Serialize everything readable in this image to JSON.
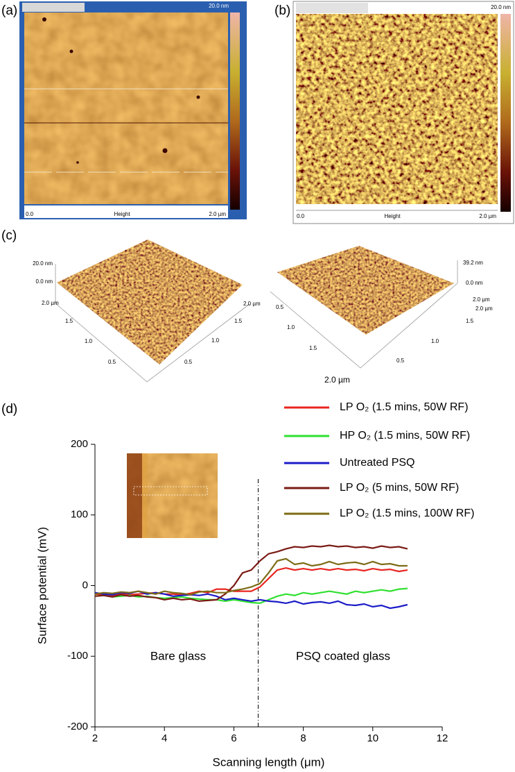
{
  "panels": {
    "a": {
      "label": "(a)",
      "scale_max": "20.0 nm",
      "x_start": "0.0",
      "axis_name": "Height",
      "x_end": "2.0 µm"
    },
    "b": {
      "label": "(b)",
      "scale_max": "20.0 nm",
      "x_start": "0.0",
      "axis_name": "Height",
      "x_end": "2.0 µm"
    },
    "c": {
      "label": "(c)",
      "left": {
        "z_top": "20.0 nm",
        "z_zero": "0.0 nm",
        "left_axis": [
          "2.0 µm",
          "1.5",
          "1.0",
          "0.5"
        ],
        "right_axis": [
          "2.0 µm",
          "1.5",
          "1.0",
          "0.5"
        ]
      },
      "right": {
        "z_top": "39.2 nm",
        "z_zero": "0.0 nm",
        "left_axis": [
          "0.5",
          "1.0",
          "1.5",
          "2.0 µm"
        ],
        "right_axis": [
          "2.0 µm",
          "2.0 µm",
          "1.5",
          "1.0",
          "0.5"
        ]
      }
    }
  },
  "chart_data": {
    "type": "line",
    "title": "(d)",
    "x_label": "Scanning length (μm)",
    "y_label": "Surface potential (mV)",
    "xlim": [
      2,
      12
    ],
    "xticks": [
      2,
      4,
      6,
      8,
      10,
      12
    ],
    "ylim": [
      -200,
      200
    ],
    "yticks": [
      -200,
      -100,
      0,
      100,
      200
    ],
    "legend": "top-right",
    "annotations": [
      "Bare glass",
      "PSQ coated glass"
    ],
    "divider_x": 6.7,
    "x": [
      2,
      2.25,
      2.5,
      2.75,
      3,
      3.25,
      3.5,
      3.75,
      4,
      4.25,
      4.5,
      4.75,
      5,
      5.25,
      5.5,
      5.75,
      6,
      6.25,
      6.5,
      6.75,
      7,
      7.25,
      7.5,
      7.75,
      8,
      8.25,
      8.5,
      8.75,
      9,
      9.25,
      9.5,
      9.75,
      10,
      10.25,
      10.5,
      10.75,
      11
    ],
    "series": [
      {
        "name": "LP O₂ (1.5 mins, 50W RF)",
        "color": "#e8241f",
        "values": [
          -12,
          -13,
          -14,
          -12,
          -13,
          -12,
          -11,
          -10,
          -12,
          -12,
          -13,
          -11,
          -8,
          -10,
          -5,
          -5,
          -8,
          -8,
          -8,
          -2,
          10,
          22,
          25,
          22,
          24,
          22,
          24,
          22,
          24,
          22,
          23,
          21,
          24,
          22,
          23,
          20,
          22
        ]
      },
      {
        "name": "HP O₂ (1.5 mins, 50W RF)",
        "color": "#2fe02f",
        "values": [
          -15,
          -14,
          -16,
          -15,
          -14,
          -16,
          -15,
          -17,
          -18,
          -17,
          -16,
          -18,
          -19,
          -20,
          -20,
          -22,
          -20,
          -22,
          -24,
          -25,
          -20,
          -15,
          -12,
          -14,
          -10,
          -12,
          -10,
          -8,
          -10,
          -12,
          -8,
          -10,
          -8,
          -6,
          -8,
          -5,
          -4
        ]
      },
      {
        "name": "Untreated PSQ",
        "color": "#1c1cc8",
        "values": [
          -10,
          -12,
          -13,
          -10,
          -11,
          -8,
          -12,
          -10,
          -12,
          -15,
          -14,
          -13,
          -14,
          -12,
          -15,
          -20,
          -18,
          -20,
          -22,
          -20,
          -22,
          -23,
          -25,
          -22,
          -26,
          -24,
          -23,
          -25,
          -22,
          -27,
          -28,
          -26,
          -30,
          -28,
          -32,
          -30,
          -27
        ]
      },
      {
        "name": "LP O₂ (5 mins, 50W RF)",
        "color": "#7a1a14",
        "values": [
          -15,
          -14,
          -16,
          -13,
          -15,
          -14,
          -16,
          -17,
          -20,
          -18,
          -20,
          -19,
          -22,
          -21,
          -20,
          -12,
          0,
          18,
          22,
          35,
          45,
          48,
          52,
          55,
          54,
          56,
          55,
          57,
          55,
          56,
          54,
          55,
          53,
          56,
          54,
          55,
          52
        ]
      },
      {
        "name": "LP O₂ (1.5 mins, 100W RF)",
        "color": "#7d6b16",
        "values": [
          -12,
          -10,
          -11,
          -9,
          -10,
          -8,
          -10,
          -12,
          -8,
          -10,
          -11,
          -13,
          -9,
          -8,
          -10,
          -10,
          -7,
          -5,
          -2,
          3,
          18,
          35,
          38,
          30,
          32,
          28,
          30,
          34,
          30,
          32,
          33,
          30,
          34,
          30,
          31,
          28,
          28
        ]
      }
    ]
  }
}
